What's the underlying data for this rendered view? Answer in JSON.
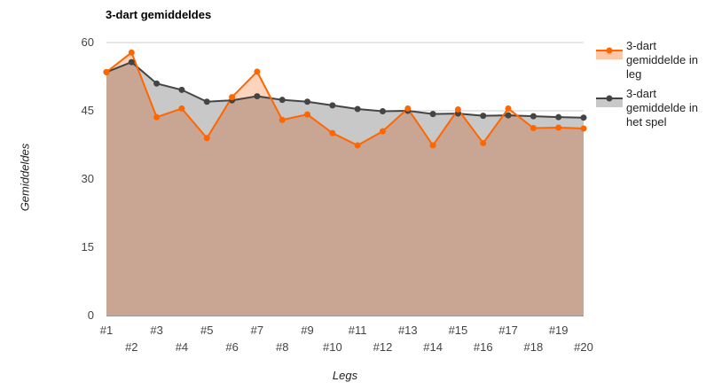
{
  "chart_data": {
    "type": "area",
    "title": "3-dart gemiddeldes",
    "xlabel": "Legs",
    "ylabel": "Gemiddeldes",
    "ylim": [
      0,
      60
    ],
    "yticks": [
      0,
      15,
      30,
      45,
      60
    ],
    "grid": true,
    "legend_position": "right",
    "categories": [
      "#1",
      "#2",
      "#3",
      "#4",
      "#5",
      "#6",
      "#7",
      "#8",
      "#9",
      "#10",
      "#11",
      "#12",
      "#13",
      "#14",
      "#15",
      "#16",
      "#17",
      "#18",
      "#19",
      "#20"
    ],
    "series": [
      {
        "name": "3-dart gemiddelde in leg",
        "color": "#ff6600",
        "fill": "#ffc6a5",
        "values": [
          53.5,
          57.8,
          43.6,
          45.5,
          39.0,
          48.0,
          53.6,
          43.0,
          44.2,
          40.1,
          37.4,
          40.5,
          45.5,
          37.4,
          45.3,
          37.9,
          45.5,
          41.2,
          41.3,
          41.1
        ]
      },
      {
        "name": "3-dart gemiddelde in het spel",
        "color": "#444444",
        "fill": "#c8c8c8",
        "values": [
          53.5,
          55.7,
          51.0,
          49.6,
          47.0,
          47.3,
          48.2,
          47.4,
          47.0,
          46.2,
          45.4,
          44.9,
          45.0,
          44.3,
          44.4,
          43.9,
          44.0,
          43.8,
          43.6,
          43.5
        ]
      }
    ]
  }
}
